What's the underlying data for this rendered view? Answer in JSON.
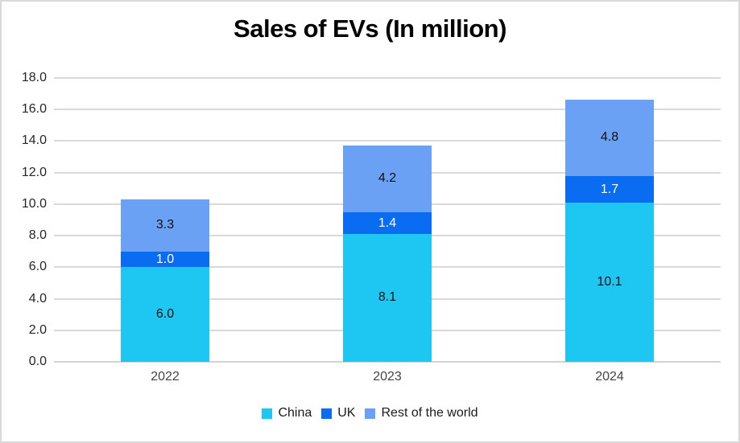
{
  "chart_data": {
    "type": "bar",
    "stacked": true,
    "title": "Sales of EVs (In million)",
    "categories": [
      "2022",
      "2023",
      "2024"
    ],
    "series": [
      {
        "name": "China",
        "color": "#1ec7f2",
        "label_color": "#111111",
        "values": [
          6.0,
          8.1,
          10.1
        ],
        "labels": [
          "6.0",
          "8.1",
          "10.1"
        ]
      },
      {
        "name": "UK",
        "color": "#0a6cf0",
        "label_color": "#ffffff",
        "values": [
          1.0,
          1.4,
          1.7
        ],
        "labels": [
          "1.0",
          "1.4",
          "1.7"
        ]
      },
      {
        "name": "Rest of the world",
        "color": "#6ba1f5",
        "label_color": "#111111",
        "values": [
          3.3,
          4.2,
          4.8
        ],
        "labels": [
          "3.3",
          "4.2",
          "4.8"
        ]
      }
    ],
    "totals": [
      10.3,
      13.7,
      16.6
    ],
    "ylim": [
      0,
      18
    ],
    "ytick_step": 2,
    "ytick_labels": [
      "0.0",
      "2.0",
      "4.0",
      "6.0",
      "8.0",
      "10.0",
      "12.0",
      "14.0",
      "16.0",
      "18.0"
    ],
    "grid": true,
    "legend_position": "bottom",
    "colors": {
      "gridline": "#d9d9d9",
      "axis_line": "#d3d3d3",
      "tick_label": "#262626",
      "category_label": "#444444",
      "title": "#000000",
      "background": "#ffffff",
      "frame_border": "#d9d9d9"
    }
  }
}
